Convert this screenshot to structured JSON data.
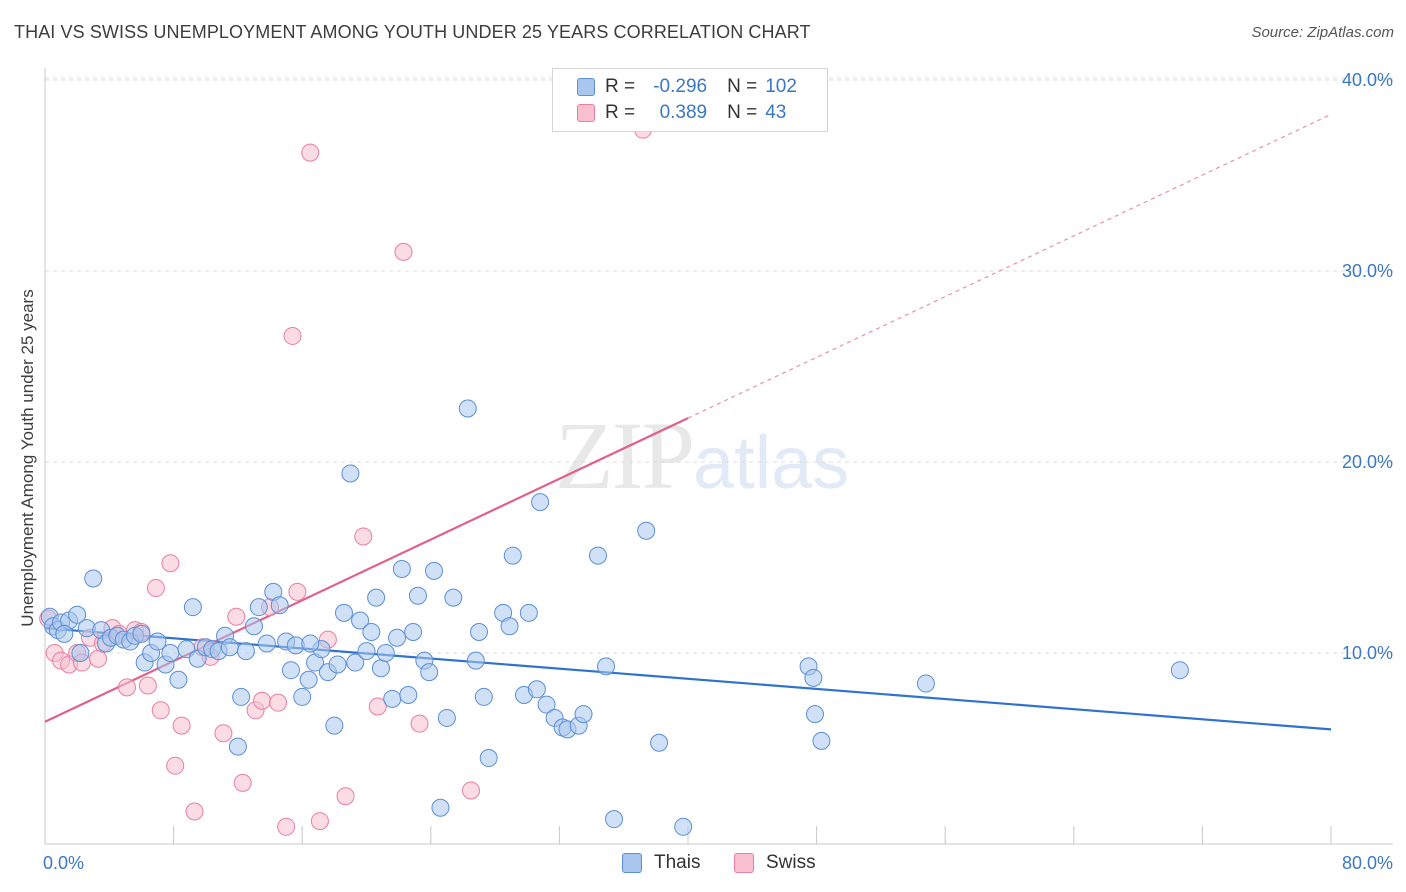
{
  "title": "THAI VS SWISS UNEMPLOYMENT AMONG YOUTH UNDER 25 YEARS CORRELATION CHART",
  "source": "Source: ZipAtlas.com",
  "watermark": {
    "zip": "ZIP",
    "atlas": "atlas"
  },
  "legend": {
    "thais": {
      "r_label": "R =",
      "r_value": "-0.296",
      "n_label": "N =",
      "n_value": "102"
    },
    "swiss": {
      "r_label": "R =",
      "r_value": "0.389",
      "n_label": "N =",
      "n_value": "43"
    }
  },
  "bottom_legend": {
    "thais": "Thais",
    "swiss": "Swiss"
  },
  "colors": {
    "thais_fill": "#a9c6ef",
    "thais_stroke": "#5b8fd6",
    "thais_line": "#2f73cc",
    "swiss_fill": "#f7bfd0",
    "swiss_stroke": "#e87fa0",
    "swiss_line": "#e0608a",
    "axis_text": "#3b78c4"
  },
  "chart_data": {
    "type": "scatter",
    "title": "THAI VS SWISS UNEMPLOYMENT AMONG YOUTH UNDER 25 YEARS CORRELATION CHART",
    "xlabel": "",
    "ylabel": "Unemployment Among Youth under 25 years",
    "xlim": [
      0,
      80
    ],
    "ylim": [
      0,
      40
    ],
    "x_tick_labels": [
      "0.0%",
      "80.0%"
    ],
    "y_ticks": [
      10,
      20,
      30,
      40
    ],
    "y_tick_labels": [
      "10.0%",
      "20.0%",
      "30.0%",
      "40.0%"
    ],
    "series": [
      {
        "name": "Thais",
        "r": -0.296,
        "n": 102,
        "trend": {
          "x": [
            0,
            80
          ],
          "y": [
            11.3,
            6.0
          ],
          "dashed_extension": false
        },
        "points": [
          [
            0.3,
            11.9
          ],
          [
            0.5,
            11.4
          ],
          [
            0.8,
            11.2
          ],
          [
            1.0,
            11.6
          ],
          [
            1.5,
            11.7
          ],
          [
            2.0,
            12.0
          ],
          [
            2.2,
            10.0
          ],
          [
            2.6,
            11.3
          ],
          [
            3.0,
            13.9
          ],
          [
            3.5,
            11.2
          ],
          [
            3.8,
            10.5
          ],
          [
            4.1,
            10.8
          ],
          [
            4.5,
            10.9
          ],
          [
            4.9,
            10.7
          ],
          [
            5.3,
            10.6
          ],
          [
            5.6,
            10.9
          ],
          [
            6.2,
            9.5
          ],
          [
            6.6,
            10.0
          ],
          [
            7.0,
            10.6
          ],
          [
            7.5,
            9.4
          ],
          [
            7.8,
            10.0
          ],
          [
            8.3,
            8.6
          ],
          [
            8.8,
            10.2
          ],
          [
            9.2,
            12.4
          ],
          [
            9.5,
            9.7
          ],
          [
            10.0,
            10.3
          ],
          [
            10.4,
            10.2
          ],
          [
            10.8,
            10.1
          ],
          [
            11.2,
            10.9
          ],
          [
            11.5,
            10.3
          ],
          [
            12.0,
            5.1
          ],
          [
            12.2,
            7.7
          ],
          [
            12.5,
            10.1
          ],
          [
            13.0,
            11.4
          ],
          [
            13.3,
            12.4
          ],
          [
            13.8,
            10.5
          ],
          [
            14.2,
            13.2
          ],
          [
            14.6,
            12.5
          ],
          [
            15.0,
            10.6
          ],
          [
            15.3,
            9.1
          ],
          [
            15.6,
            10.4
          ],
          [
            16.0,
            7.7
          ],
          [
            16.4,
            8.6
          ],
          [
            16.8,
            9.5
          ],
          [
            17.2,
            10.2
          ],
          [
            17.6,
            9.0
          ],
          [
            18.0,
            6.2
          ],
          [
            18.2,
            9.4
          ],
          [
            18.6,
            12.1
          ],
          [
            19.0,
            19.4
          ],
          [
            19.3,
            9.5
          ],
          [
            19.6,
            11.7
          ],
          [
            20.0,
            10.1
          ],
          [
            20.3,
            11.1
          ],
          [
            20.6,
            12.9
          ],
          [
            20.9,
            9.2
          ],
          [
            21.2,
            10.0
          ],
          [
            21.6,
            7.6
          ],
          [
            21.9,
            10.8
          ],
          [
            22.2,
            14.4
          ],
          [
            22.6,
            7.8
          ],
          [
            22.9,
            11.1
          ],
          [
            23.2,
            13.0
          ],
          [
            23.6,
            9.6
          ],
          [
            23.9,
            9.0
          ],
          [
            24.2,
            14.3
          ],
          [
            24.6,
            1.9
          ],
          [
            25.0,
            6.6
          ],
          [
            25.4,
            12.9
          ],
          [
            26.3,
            22.8
          ],
          [
            26.8,
            9.6
          ],
          [
            27.0,
            11.1
          ],
          [
            27.3,
            7.7
          ],
          [
            27.6,
            4.5
          ],
          [
            28.5,
            12.1
          ],
          [
            28.9,
            11.4
          ],
          [
            29.1,
            15.1
          ],
          [
            29.8,
            7.8
          ],
          [
            30.1,
            12.1
          ],
          [
            30.6,
            8.1
          ],
          [
            30.8,
            17.9
          ],
          [
            31.2,
            7.3
          ],
          [
            31.7,
            6.6
          ],
          [
            32.2,
            6.1
          ],
          [
            32.5,
            6.0
          ],
          [
            33.2,
            6.2
          ],
          [
            33.5,
            6.8
          ],
          [
            34.4,
            15.1
          ],
          [
            34.9,
            9.3
          ],
          [
            35.4,
            1.3
          ],
          [
            37.4,
            16.4
          ],
          [
            38.2,
            5.3
          ],
          [
            39.7,
            0.9
          ],
          [
            47.5,
            9.3
          ],
          [
            47.8,
            8.7
          ],
          [
            47.9,
            6.8
          ],
          [
            48.3,
            5.4
          ],
          [
            54.8,
            8.4
          ],
          [
            70.6,
            9.1
          ],
          [
            6.0,
            11.0
          ],
          [
            1.2,
            11.0
          ],
          [
            16.5,
            10.5
          ]
        ]
      },
      {
        "name": "Swiss",
        "r": 0.389,
        "n": 43,
        "trend": {
          "x": [
            0,
            40
          ],
          "y": [
            6.4,
            22.3
          ],
          "dashed_extension": {
            "x": [
              40,
              80
            ],
            "y": [
              22.3,
              38.2
            ]
          }
        },
        "points": [
          [
            0.2,
            11.8
          ],
          [
            0.6,
            10.0
          ],
          [
            1.0,
            9.6
          ],
          [
            1.5,
            9.4
          ],
          [
            2.0,
            10.0
          ],
          [
            2.3,
            9.5
          ],
          [
            2.8,
            10.8
          ],
          [
            3.3,
            9.7
          ],
          [
            3.6,
            10.5
          ],
          [
            4.2,
            11.3
          ],
          [
            4.6,
            11.0
          ],
          [
            5.1,
            8.2
          ],
          [
            5.6,
            11.2
          ],
          [
            6.0,
            11.1
          ],
          [
            6.4,
            8.3
          ],
          [
            6.9,
            13.4
          ],
          [
            7.2,
            7.0
          ],
          [
            7.8,
            14.7
          ],
          [
            8.1,
            4.1
          ],
          [
            8.5,
            6.2
          ],
          [
            9.3,
            1.7
          ],
          [
            9.8,
            10.3
          ],
          [
            10.3,
            9.8
          ],
          [
            11.1,
            5.8
          ],
          [
            11.9,
            11.9
          ],
          [
            12.3,
            3.2
          ],
          [
            13.1,
            7.0
          ],
          [
            13.5,
            7.5
          ],
          [
            14.0,
            12.4
          ],
          [
            14.5,
            7.4
          ],
          [
            15.0,
            0.9
          ],
          [
            15.4,
            26.6
          ],
          [
            15.7,
            13.2
          ],
          [
            16.5,
            36.2
          ],
          [
            17.1,
            1.2
          ],
          [
            17.6,
            10.7
          ],
          [
            18.7,
            2.5
          ],
          [
            19.8,
            16.1
          ],
          [
            20.7,
            7.2
          ],
          [
            22.3,
            31.0
          ],
          [
            23.3,
            6.3
          ],
          [
            26.5,
            2.8
          ],
          [
            37.2,
            37.4
          ]
        ]
      }
    ]
  }
}
